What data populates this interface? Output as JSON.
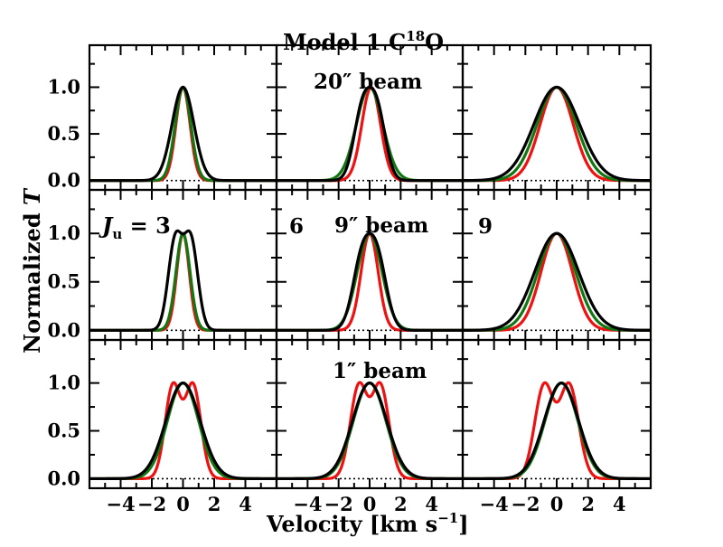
{
  "chart_data": {
    "type": "line",
    "title": "Model 1 C",
    "title_sup": "18",
    "title_after": "O",
    "xlabel": "Velocity [km s",
    "xlabel_sup": "−1",
    "xlabel_after": "]",
    "ylabel": "Normalized",
    "ylabel_symbol": "T",
    "xlim": [
      -6,
      6
    ],
    "ylim": [
      -0.1,
      1.45
    ],
    "x_tick_labels": [
      "−4",
      "−2",
      "0",
      "2",
      "4"
    ],
    "x_ticks": [
      -4,
      -2,
      0,
      2,
      4
    ],
    "y_tick_labels": [
      "0.0",
      "0.5",
      "1.0"
    ],
    "y_ticks": [
      0.0,
      0.5,
      1.0
    ],
    "series_colors": {
      "red": "#ee1111",
      "green": "#117711",
      "black": "#000000"
    },
    "panel_labels": {
      "beam_20": "20″ beam",
      "beam_9": "9″ beam",
      "beam_1": "1″ beam",
      "ju_prefix": "J",
      "ju_sub": "u",
      "ju_suffix": " = 3",
      "ju_6": "6",
      "ju_9": "9"
    },
    "panels": [
      {
        "row": 0,
        "col": 0,
        "red": {
          "w": 0.45
        },
        "green": {
          "w": 0.5
        },
        "black": {
          "w": 0.7
        }
      },
      {
        "row": 0,
        "col": 1,
        "red": {
          "w": 0.6,
          "c": 0.1
        },
        "green": {
          "w": 0.85
        },
        "black": {
          "w": 0.55,
          "sep": 0.95
        }
      },
      {
        "row": 0,
        "col": 2,
        "red": {
          "w": 1.05
        },
        "green": {
          "w": 1.25
        },
        "black": {
          "w": 1.45
        }
      },
      {
        "row": 1,
        "col": 0,
        "red": {
          "w": 0.4
        },
        "green": {
          "w": 0.45
        },
        "black": {
          "w": 0.45,
          "sep": 1.0
        }
      },
      {
        "row": 1,
        "col": 1,
        "red": {
          "w": 0.55
        },
        "green": {
          "w": 0.8
        },
        "black": {
          "w": 0.6,
          "sep": 1.0
        }
      },
      {
        "row": 1,
        "col": 2,
        "red": {
          "w": 1.0
        },
        "green": {
          "w": 1.2
        },
        "black": {
          "w": 1.4
        }
      },
      {
        "row": 2,
        "col": 0,
        "red": {
          "w": 0.5,
          "sep": 1.3
        },
        "green": {
          "w": 1.0
        },
        "black": {
          "w": 1.1
        }
      },
      {
        "row": 2,
        "col": 1,
        "red": {
          "w": 0.55,
          "sep": 1.4
        },
        "green": {
          "w": 1.05
        },
        "black": {
          "w": 1.1
        }
      },
      {
        "row": 2,
        "col": 2,
        "red": {
          "w": 0.6,
          "sep": 1.6
        },
        "green": {
          "w": 1.05,
          "c": 0.3
        },
        "black": {
          "w": 1.1,
          "c": 0.3
        }
      }
    ]
  }
}
